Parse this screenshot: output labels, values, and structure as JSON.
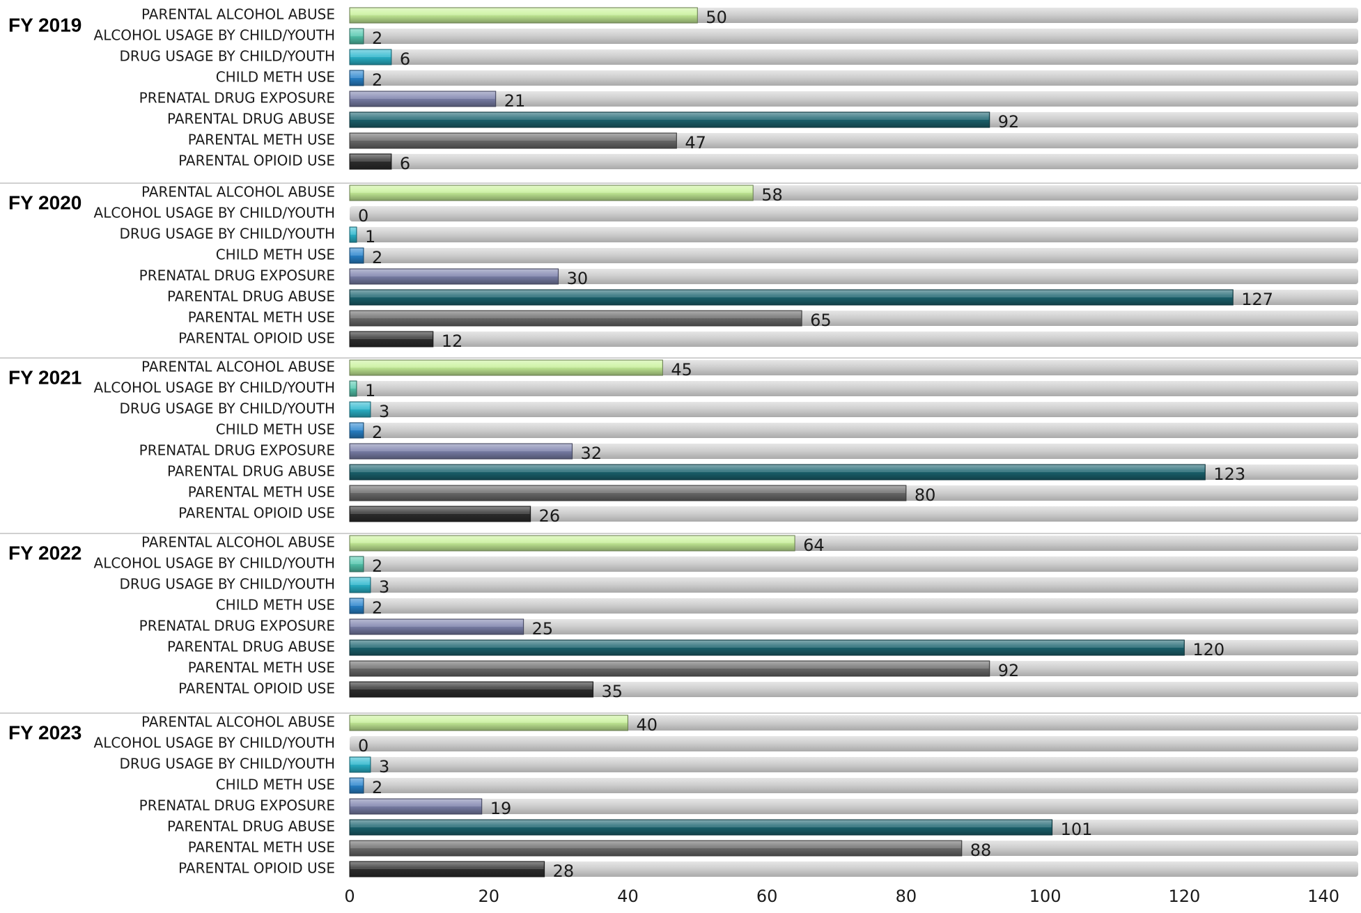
{
  "chart_data": {
    "type": "bar",
    "orientation": "horizontal",
    "categories": [
      "PARENTAL ALCOHOL ABUSE",
      "ALCOHOL USAGE BY CHILD/YOUTH",
      "DRUG USAGE BY CHILD/YOUTH",
      "CHILD METH USE",
      "PRENATAL DRUG EXPOSURE",
      "PARENTAL DRUG ABUSE",
      "PARENTAL METH USE",
      "PARENTAL OPIOID USE"
    ],
    "category_colors": [
      "#c9f29a",
      "#55c9b0",
      "#2bb8cf",
      "#2a86cf",
      "#7d82ad",
      "#1b6470",
      "#6c6c6c",
      "#2e2e2e"
    ],
    "groups": [
      {
        "name": "FY 2019",
        "values": [
          50,
          2,
          6,
          2,
          21,
          92,
          47,
          6
        ]
      },
      {
        "name": "FY 2020",
        "values": [
          58,
          0,
          1,
          2,
          30,
          127,
          65,
          12
        ]
      },
      {
        "name": "FY 2021",
        "values": [
          45,
          1,
          3,
          2,
          32,
          123,
          80,
          26
        ]
      },
      {
        "name": "FY 2022",
        "values": [
          64,
          2,
          3,
          2,
          25,
          120,
          92,
          35
        ]
      },
      {
        "name": "FY 2023",
        "values": [
          40,
          0,
          3,
          2,
          19,
          101,
          88,
          28
        ]
      }
    ],
    "xlim": [
      0,
      145
    ],
    "x_ticks": [
      0,
      20,
      40,
      60,
      80,
      100,
      120,
      140
    ],
    "track_color": "#c4c4c4",
    "grid": false,
    "legend": "none"
  }
}
